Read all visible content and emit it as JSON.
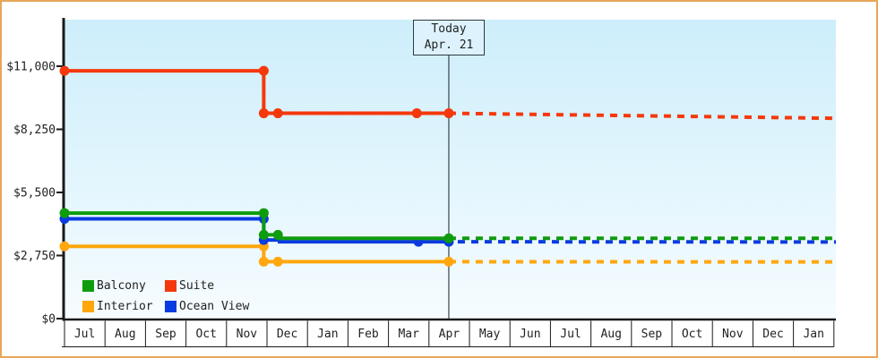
{
  "colors": {
    "frame_border": "#e9a65a",
    "plot_bg_top": "#cdeefb",
    "plot_bg_bottom": "#f6fcff",
    "axis": "#1a1a1a",
    "text": "#222222",
    "today_line": "#44525c",
    "today_box_bg": "#ddf2fc",
    "today_box_border": "#2b3a42"
  },
  "chart_data": {
    "type": "line",
    "title": "",
    "units": "USD",
    "x_unit": "months, 0 = Jul of first year",
    "x_tick_labels": [
      "Jul",
      "Aug",
      "Sep",
      "Oct",
      "Nov",
      "Dec",
      "Jan",
      "Feb",
      "Mar",
      "Apr",
      "May",
      "Jun",
      "Jul",
      "Aug",
      "Sep",
      "Oct",
      "Nov",
      "Dec",
      "Jan"
    ],
    "x_range_months": [
      0,
      19
    ],
    "ylim": [
      0,
      13000
    ],
    "y_ticks": [
      {
        "label": "$0",
        "value": 0
      },
      {
        "label": "$2,750",
        "value": 2750
      },
      {
        "label": "$5,500",
        "value": 5500
      },
      {
        "label": "$8,250",
        "value": 8250
      },
      {
        "label": "$11,000",
        "value": 11000
      }
    ],
    "grid": false,
    "legend_position": "bottom-left",
    "projection_style": "dashed after today",
    "today": {
      "line1": "Today",
      "line2": "Apr. 21",
      "t": 9.49
    },
    "series": [
      {
        "name": "Balcony",
        "color": "#0e9c0e",
        "solid": [
          [
            0,
            4600
          ],
          [
            4.92,
            4600
          ],
          [
            4.92,
            3650
          ],
          [
            5.31,
            3650
          ],
          [
            5.31,
            3500
          ],
          [
            9.49,
            3500
          ]
        ],
        "projection": [
          [
            9.49,
            3500
          ],
          [
            19.05,
            3500
          ]
        ],
        "markers": [
          [
            0,
            4600
          ],
          [
            4.92,
            4600
          ],
          [
            4.92,
            3650
          ],
          [
            5.27,
            3650
          ],
          [
            9.49,
            3500
          ]
        ]
      },
      {
        "name": "Suite",
        "color": "#f5380b",
        "solid": [
          [
            0,
            10800
          ],
          [
            4.92,
            10800
          ],
          [
            4.92,
            8950
          ],
          [
            9.49,
            8950
          ]
        ],
        "projection": [
          [
            9.49,
            8950
          ],
          [
            19.05,
            8730
          ]
        ],
        "markers": [
          [
            0,
            10800
          ],
          [
            4.92,
            10800
          ],
          [
            4.92,
            8950
          ],
          [
            5.27,
            8950
          ],
          [
            8.7,
            8950
          ],
          [
            9.49,
            8950
          ]
        ]
      },
      {
        "name": "Interior",
        "color": "#ffa70d",
        "solid": [
          [
            0,
            3150
          ],
          [
            4.92,
            3150
          ],
          [
            4.92,
            2480
          ],
          [
            9.49,
            2480
          ]
        ],
        "projection": [
          [
            9.49,
            2480
          ],
          [
            19.05,
            2470
          ]
        ],
        "markers": [
          [
            0,
            3150
          ],
          [
            4.92,
            3150
          ],
          [
            4.92,
            2480
          ],
          [
            5.27,
            2480
          ],
          [
            9.49,
            2480
          ]
        ]
      },
      {
        "name": "Ocean View",
        "color": "#0a3be0",
        "solid": [
          [
            0,
            4350
          ],
          [
            4.92,
            4350
          ],
          [
            4.92,
            3430
          ],
          [
            5.31,
            3430
          ],
          [
            5.31,
            3350
          ],
          [
            9.49,
            3350
          ]
        ],
        "projection": [
          [
            9.49,
            3350
          ],
          [
            19.05,
            3340
          ]
        ],
        "markers": [
          [
            0,
            4350
          ],
          [
            4.92,
            4350
          ],
          [
            4.92,
            3430
          ],
          [
            8.74,
            3350
          ],
          [
            9.49,
            3350
          ]
        ]
      }
    ]
  }
}
